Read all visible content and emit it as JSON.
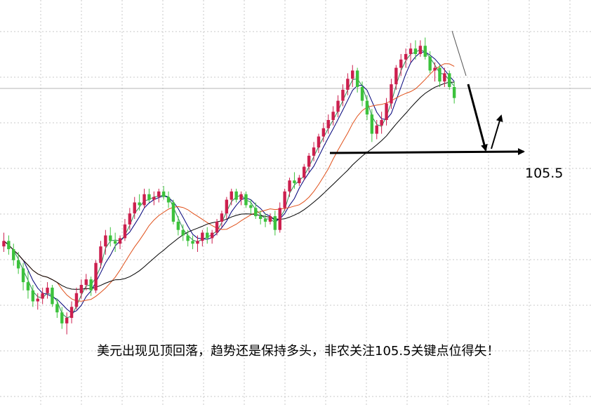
{
  "chart_data": {
    "type": "candlestick",
    "title": "",
    "xlabel": "",
    "ylabel": "",
    "grid": true,
    "colors": {
      "up": "#cc1f4e",
      "down": "#3cc23c",
      "ma_fast": "#2e8b57",
      "ma_mid": "#00007a",
      "ma_slow": "#e0501a",
      "ma_long": "#000000",
      "annotation": "#000000",
      "grid": "#c8c8c8"
    },
    "annotations": {
      "key_level": "105.5",
      "caption": "美元出现见顶回落，趋势还是保持多头，非农关注105.5关键点位得失！"
    },
    "ohlc": [
      [
        101.8,
        102.3,
        101.6,
        102.0
      ],
      [
        102.0,
        102.2,
        101.5,
        101.7
      ],
      [
        101.7,
        101.9,
        101.1,
        101.3
      ],
      [
        101.3,
        101.6,
        100.8,
        101.0
      ],
      [
        101.0,
        101.2,
        100.2,
        100.5
      ],
      [
        100.5,
        100.9,
        99.9,
        100.2
      ],
      [
        100.2,
        100.4,
        99.6,
        99.8
      ],
      [
        99.8,
        100.1,
        99.5,
        99.9
      ],
      [
        99.9,
        100.3,
        99.7,
        100.1
      ],
      [
        100.1,
        100.5,
        99.9,
        100.3
      ],
      [
        100.3,
        100.4,
        99.6,
        99.7
      ],
      [
        99.7,
        99.9,
        99.2,
        99.4
      ],
      [
        99.4,
        99.6,
        98.8,
        99.0
      ],
      [
        99.0,
        99.4,
        98.6,
        99.2
      ],
      [
        99.2,
        99.8,
        99.0,
        99.6
      ],
      [
        99.6,
        100.3,
        99.5,
        100.1
      ],
      [
        100.1,
        100.6,
        99.9,
        100.4
      ],
      [
        100.4,
        100.8,
        100.2,
        100.6
      ],
      [
        100.6,
        100.7,
        100.0,
        100.2
      ],
      [
        100.2,
        101.3,
        100.1,
        101.2
      ],
      [
        101.2,
        102.0,
        101.0,
        101.8
      ],
      [
        101.8,
        102.4,
        101.5,
        102.2
      ],
      [
        102.2,
        102.5,
        101.8,
        102.0
      ],
      [
        102.0,
        102.3,
        101.6,
        101.9
      ],
      [
        101.9,
        102.2,
        101.7,
        102.1
      ],
      [
        102.1,
        102.8,
        102.0,
        102.6
      ],
      [
        102.6,
        103.2,
        102.4,
        103.0
      ],
      [
        103.0,
        103.6,
        102.8,
        103.4
      ],
      [
        103.4,
        103.7,
        103.1,
        103.3
      ],
      [
        103.3,
        103.9,
        103.2,
        103.7
      ],
      [
        103.7,
        103.9,
        103.4,
        103.5
      ],
      [
        103.5,
        103.8,
        103.3,
        103.6
      ],
      [
        103.6,
        103.9,
        103.4,
        103.8
      ],
      [
        103.8,
        104.0,
        103.5,
        103.6
      ],
      [
        103.6,
        103.8,
        103.2,
        103.4
      ],
      [
        103.4,
        103.5,
        102.6,
        102.7
      ],
      [
        102.7,
        102.9,
        102.2,
        102.4
      ],
      [
        102.4,
        102.6,
        102.0,
        102.2
      ],
      [
        102.2,
        102.4,
        101.8,
        102.0
      ],
      [
        102.0,
        102.2,
        101.7,
        101.9
      ],
      [
        101.9,
        102.2,
        101.6,
        102.0
      ],
      [
        102.0,
        102.4,
        101.8,
        102.3
      ],
      [
        102.3,
        102.5,
        101.9,
        102.1
      ],
      [
        102.1,
        102.4,
        101.9,
        102.3
      ],
      [
        102.3,
        102.8,
        102.2,
        102.7
      ],
      [
        102.7,
        103.1,
        102.5,
        103.0
      ],
      [
        103.0,
        103.6,
        102.8,
        103.5
      ],
      [
        103.5,
        103.9,
        103.3,
        103.8
      ],
      [
        103.8,
        103.9,
        103.4,
        103.5
      ],
      [
        103.5,
        103.8,
        103.3,
        103.7
      ],
      [
        103.7,
        103.8,
        103.2,
        103.3
      ],
      [
        103.3,
        103.5,
        103.0,
        103.2
      ],
      [
        103.2,
        103.4,
        102.8,
        102.9
      ],
      [
        102.9,
        103.1,
        102.6,
        102.8
      ],
      [
        102.8,
        103.0,
        102.5,
        102.7
      ],
      [
        102.7,
        103.0,
        102.6,
        102.9
      ],
      [
        102.9,
        103.1,
        102.2,
        102.4
      ],
      [
        102.4,
        103.4,
        102.3,
        103.2
      ],
      [
        103.2,
        103.9,
        103.1,
        103.8
      ],
      [
        103.8,
        104.3,
        103.6,
        104.2
      ],
      [
        104.2,
        104.5,
        103.9,
        104.1
      ],
      [
        104.1,
        104.4,
        104.0,
        104.3
      ],
      [
        104.3,
        104.8,
        104.2,
        104.7
      ],
      [
        104.7,
        105.2,
        104.5,
        105.1
      ],
      [
        105.1,
        105.6,
        104.9,
        105.4
      ],
      [
        105.4,
        105.9,
        105.2,
        105.8
      ],
      [
        105.8,
        106.3,
        105.6,
        106.1
      ],
      [
        106.1,
        106.6,
        105.9,
        106.4
      ],
      [
        106.4,
        106.9,
        106.2,
        106.7
      ],
      [
        106.7,
        107.3,
        106.5,
        107.1
      ],
      [
        107.1,
        107.7,
        106.9,
        107.5
      ],
      [
        107.5,
        108.1,
        107.3,
        107.9
      ],
      [
        107.9,
        108.4,
        107.6,
        108.2
      ],
      [
        108.2,
        108.3,
        107.4,
        107.6
      ],
      [
        107.6,
        107.8,
        106.9,
        107.1
      ],
      [
        107.1,
        107.3,
        106.4,
        106.6
      ],
      [
        106.6,
        106.8,
        105.6,
        105.9
      ],
      [
        105.9,
        106.4,
        105.7,
        106.2
      ],
      [
        106.2,
        106.7,
        105.9,
        106.4
      ],
      [
        106.4,
        107.2,
        106.2,
        107.0
      ],
      [
        107.0,
        107.9,
        106.8,
        107.7
      ],
      [
        107.7,
        108.4,
        107.5,
        108.3
      ],
      [
        108.3,
        108.8,
        108.0,
        108.6
      ],
      [
        108.6,
        109.0,
        108.3,
        108.8
      ],
      [
        108.8,
        109.2,
        108.5,
        109.0
      ],
      [
        109.0,
        109.3,
        108.6,
        108.8
      ],
      [
        108.8,
        109.3,
        108.7,
        109.1
      ],
      [
        109.1,
        109.4,
        108.6,
        108.7
      ],
      [
        108.7,
        108.9,
        108.1,
        108.2
      ],
      [
        108.2,
        108.5,
        107.8,
        108.3
      ],
      [
        108.3,
        108.4,
        107.6,
        107.8
      ],
      [
        107.8,
        108.3,
        107.6,
        108.1
      ],
      [
        108.1,
        108.2,
        107.5,
        107.6
      ],
      [
        107.6,
        107.8,
        107.0,
        107.2
      ]
    ]
  }
}
